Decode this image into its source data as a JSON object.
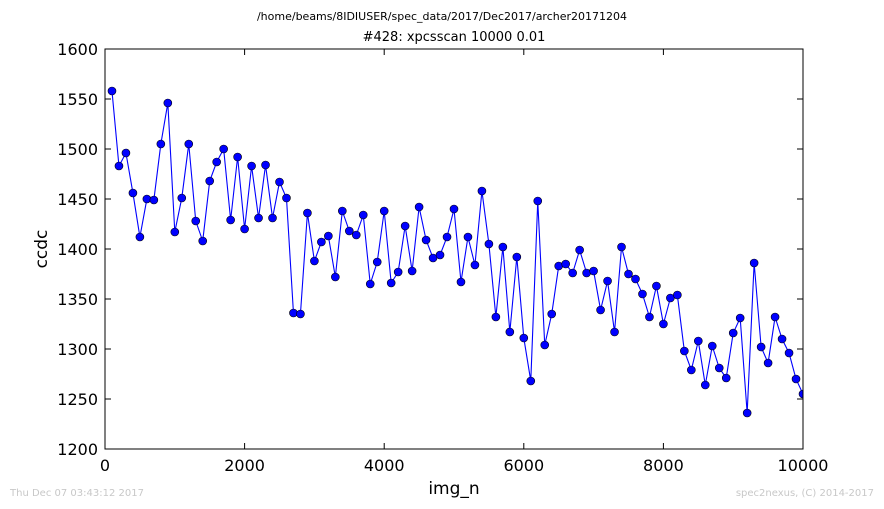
{
  "header": {
    "path": "/home/beams/8IDIUSER/spec_data/2017/Dec2017/archer20171204"
  },
  "footer": {
    "timestamp": "Thu Dec 07 03:43:12 2017",
    "credit": "spec2nexus, (C) 2014-2017"
  },
  "chart_data": {
    "type": "line",
    "title": "#428: xpcsscan 10000 0.01",
    "xlabel": "img_n",
    "ylabel": "ccdc",
    "xlim": [
      0,
      10000
    ],
    "ylim": [
      1200,
      1600
    ],
    "xticks": [
      0,
      2000,
      4000,
      6000,
      8000,
      10000
    ],
    "yticks": [
      1200,
      1250,
      1300,
      1350,
      1400,
      1450,
      1500,
      1550,
      1600
    ],
    "grid": false,
    "marker": "circle",
    "color": "#0000ff",
    "markeredge": "#000000",
    "series": [
      {
        "x": [
          100,
          200,
          300,
          400,
          500,
          600,
          700,
          800,
          900,
          1000,
          1100,
          1200,
          1300,
          1400,
          1500,
          1600,
          1700,
          1800,
          1900,
          2000,
          2100,
          2200,
          2300,
          2400,
          2500,
          2600,
          2700,
          2800,
          2900,
          3000,
          3100,
          3200,
          3300,
          3400,
          3500,
          3600,
          3700,
          3800,
          3900,
          4000,
          4100,
          4200,
          4300,
          4400,
          4500,
          4600,
          4700,
          4800,
          4900,
          5000,
          5100,
          5200,
          5300,
          5400,
          5500,
          5600,
          5700,
          5800,
          5900,
          6000,
          6100,
          6200,
          6300,
          6400,
          6500,
          6600,
          6700,
          6800,
          6900,
          7000,
          7100,
          7200,
          7300,
          7400,
          7500,
          7600,
          7700,
          7800,
          7900,
          8000,
          8100,
          8200,
          8300,
          8400,
          8500,
          8600,
          8700,
          8800,
          8900,
          9000,
          9100,
          9200,
          9300,
          9400,
          9500,
          9600,
          9700,
          9800,
          9900,
          10000
        ],
        "y": [
          1558,
          1483,
          1496,
          1456,
          1412,
          1450,
          1449,
          1505,
          1546,
          1417,
          1451,
          1505,
          1428,
          1408,
          1468,
          1487,
          1500,
          1429,
          1492,
          1420,
          1483,
          1431,
          1484,
          1431,
          1467,
          1451,
          1336,
          1335,
          1436,
          1388,
          1407,
          1413,
          1372,
          1438,
          1418,
          1414,
          1434,
          1365,
          1387,
          1438,
          1366,
          1377,
          1423,
          1378,
          1442,
          1409,
          1391,
          1394,
          1412,
          1440,
          1367,
          1412,
          1384,
          1458,
          1405,
          1332,
          1402,
          1317,
          1392,
          1311,
          1268,
          1448,
          1304,
          1335,
          1383,
          1385,
          1376,
          1399,
          1376,
          1378,
          1339,
          1368,
          1317,
          1402,
          1375,
          1370,
          1355,
          1332,
          1363,
          1325,
          1351,
          1354,
          1298,
          1279,
          1308,
          1264,
          1303,
          1281,
          1271,
          1316,
          1331,
          1236,
          1386,
          1302,
          1286,
          1332,
          1310,
          1296,
          1270,
          1255
        ]
      }
    ]
  }
}
